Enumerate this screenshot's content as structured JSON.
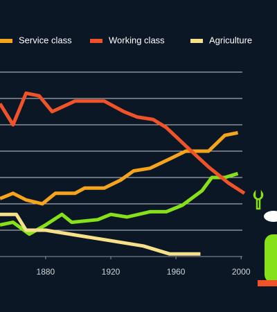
{
  "chart_data": {
    "type": "line",
    "background": "#0c1726",
    "series": [
      {
        "name": "Service class",
        "color": "#f5a41c",
        "x": [
          1852,
          1860,
          1868,
          1878,
          1886,
          1898,
          1904,
          1916,
          1926,
          1934,
          1944,
          1956,
          1966,
          1980,
          1990,
          1998
        ],
        "values": [
          22,
          24,
          21.5,
          20,
          24,
          24,
          26,
          26,
          29,
          32.5,
          33.5,
          37,
          40,
          40,
          46,
          47
        ]
      },
      {
        "name": "Working class",
        "color": "#f0522a",
        "x": [
          1852,
          1860,
          1868,
          1876,
          1884,
          1898,
          1904,
          1916,
          1928,
          1936,
          1946,
          1954,
          1966,
          1980,
          1992,
          2002
        ],
        "values": [
          58,
          50,
          62,
          61,
          55,
          59,
          59,
          59,
          55,
          53,
          52,
          49,
          42,
          34,
          28,
          24
        ]
      },
      {
        "name": "Agriculture",
        "color": "#f7e08a",
        "x": [
          1852,
          1862,
          1868,
          1880,
          1900,
          1920,
          1940,
          1956,
          1975
        ],
        "values": [
          16,
          16,
          10,
          10,
          8,
          6,
          4,
          1,
          1
        ]
      },
      {
        "color": "#86e01a",
        "x": [
          1852,
          1860,
          1870,
          1880,
          1890,
          1896,
          1912,
          1920,
          1930,
          1944,
          1954,
          1964,
          1976,
          1982,
          1990,
          1998
        ],
        "values": [
          12,
          13,
          8.5,
          12,
          16,
          13,
          14,
          16,
          15,
          17,
          17,
          19.5,
          25,
          30,
          30,
          31.5
        ]
      }
    ],
    "xlim": [
      1852,
      2022
    ],
    "xticks": [
      1880,
      1920,
      1960,
      2000
    ],
    "ylim": [
      0,
      70
    ],
    "yticks": [
      0,
      10,
      20,
      30,
      40,
      50,
      60,
      70
    ],
    "grid": true
  }
}
